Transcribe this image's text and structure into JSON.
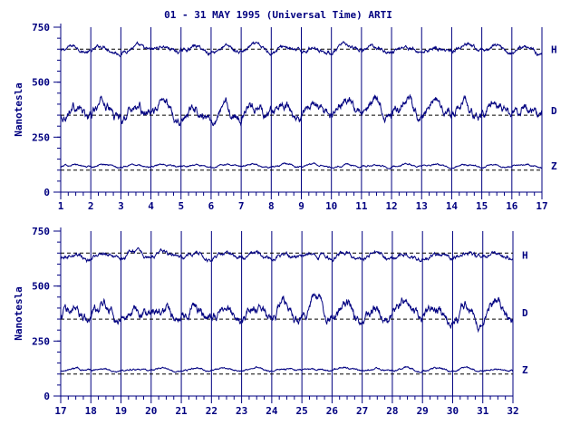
{
  "chart_data": {
    "type": "line",
    "title": "01 - 31 MAY 1995 (Universal Time) ARTI",
    "ylabel": "Nanotesla",
    "xlabel": "",
    "colors": {
      "trace": "#000080",
      "axis": "#000080",
      "background": "#ffffff"
    },
    "panels": [
      {
        "x_ticks": [
          "1",
          "2",
          "3",
          "4",
          "5",
          "6",
          "7",
          "8",
          "9",
          "10",
          "11",
          "12",
          "13",
          "14",
          "15",
          "16",
          "17"
        ],
        "xlim": [
          1,
          17
        ],
        "ylim": [
          0,
          750
        ],
        "y_ticks": [
          "0",
          "250",
          "500",
          "750"
        ],
        "baselines": [
          650,
          350,
          100
        ],
        "series": [
          {
            "name": "H",
            "level": 650
          },
          {
            "name": "D",
            "level": 370
          },
          {
            "name": "Z",
            "level": 120
          }
        ]
      },
      {
        "x_ticks": [
          "17",
          "18",
          "19",
          "20",
          "21",
          "22",
          "23",
          "24",
          "25",
          "26",
          "27",
          "28",
          "29",
          "30",
          "31",
          "32"
        ],
        "xlim": [
          17,
          32
        ],
        "ylim": [
          0,
          750
        ],
        "y_ticks": [
          "0",
          "250",
          "500",
          "750"
        ],
        "baselines": [
          650,
          350,
          100
        ],
        "series": [
          {
            "name": "H",
            "level": 640
          },
          {
            "name": "D",
            "level": 380
          },
          {
            "name": "Z",
            "level": 120
          }
        ]
      }
    ]
  }
}
